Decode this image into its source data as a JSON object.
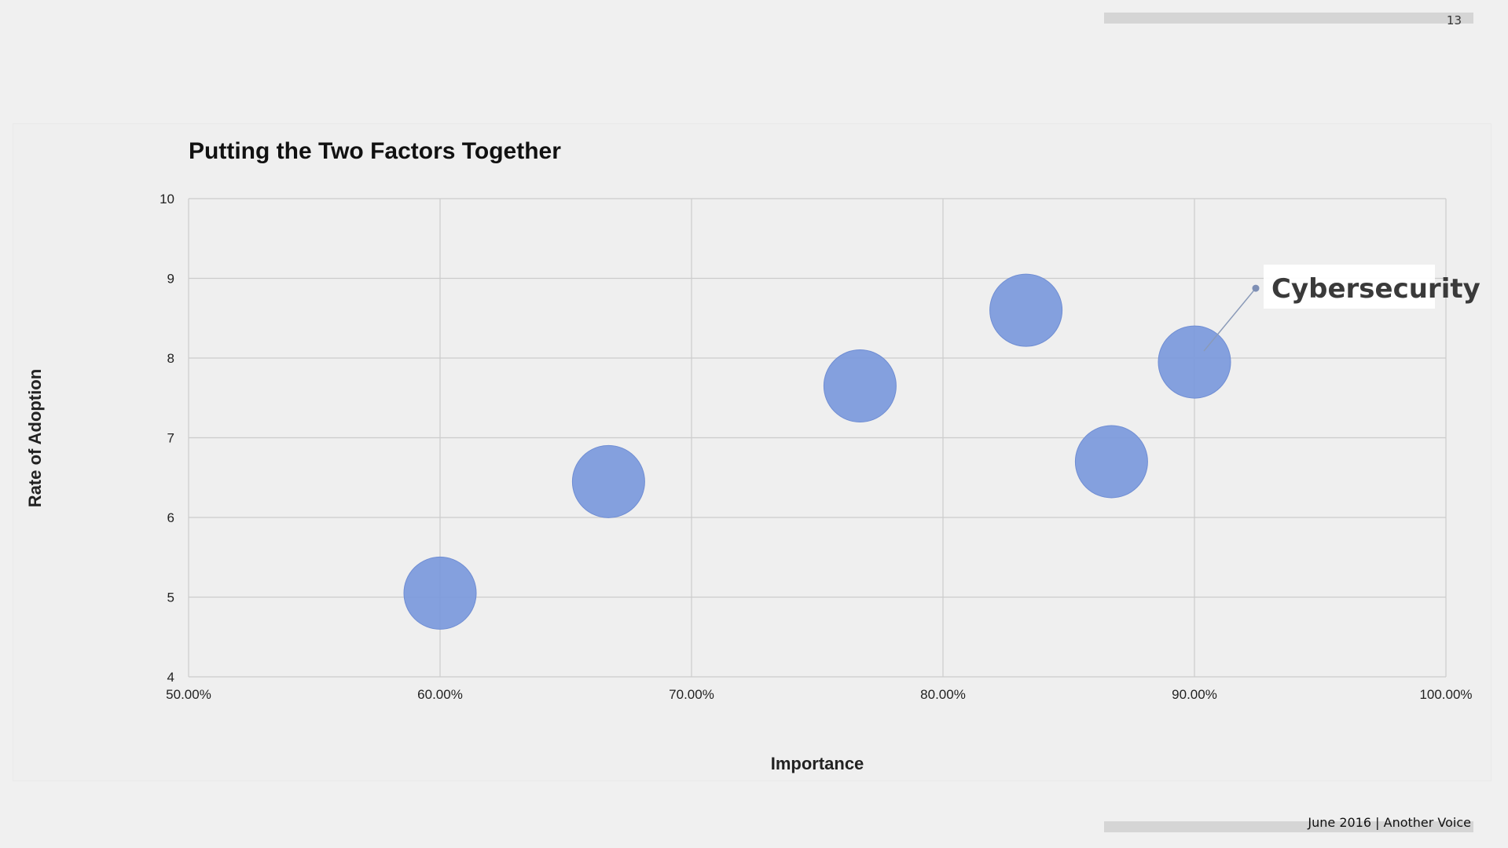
{
  "page": {
    "number": "13",
    "footer": "June 2016  |  Another Voice"
  },
  "colors": {
    "bubble": "#7b99dc",
    "bubble_stroke": "#6f8dd3",
    "grid": "#cccccc",
    "background": "#f0f0f0"
  },
  "chart_data": {
    "type": "scatter",
    "title": "Putting the Two Factors Together",
    "xlabel": "Importance",
    "ylabel": "Rate of Adoption",
    "xlim": [
      0.5,
      1.0
    ],
    "ylim": [
      4,
      10
    ],
    "x_tick_labels": [
      "50.00%",
      "60.00%",
      "70.00%",
      "80.00%",
      "90.00%",
      "100.00%"
    ],
    "y_tick_labels": [
      "4",
      "5",
      "6",
      "7",
      "8",
      "9",
      "10"
    ],
    "grid": true,
    "points": [
      {
        "x": 0.6,
        "y": 5.05
      },
      {
        "x": 0.667,
        "y": 6.45
      },
      {
        "x": 0.767,
        "y": 7.65
      },
      {
        "x": 0.833,
        "y": 8.6
      },
      {
        "x": 0.867,
        "y": 6.7
      },
      {
        "x": 0.9,
        "y": 7.95,
        "label": "Cybersecurity"
      }
    ],
    "annotation": "Cybersecurity"
  }
}
